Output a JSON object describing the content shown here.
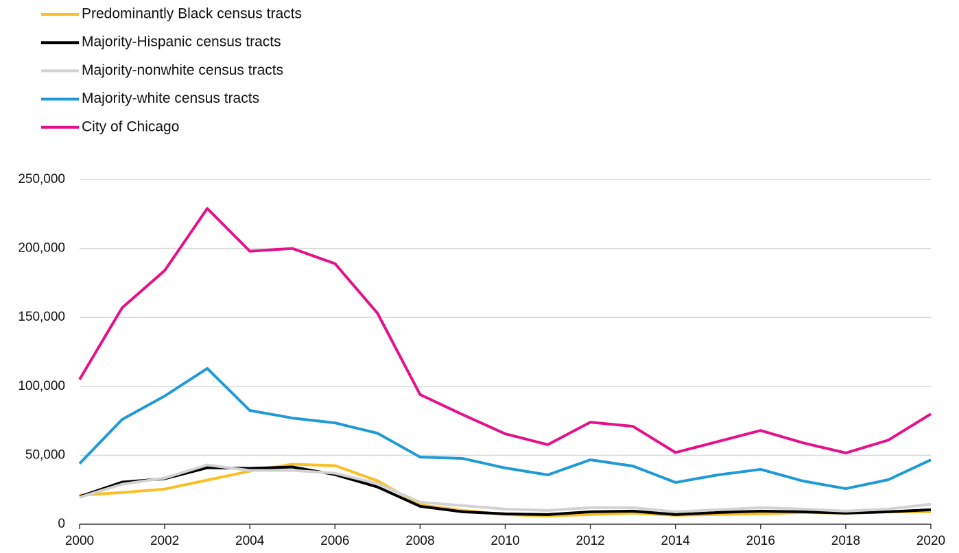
{
  "chart_data": {
    "type": "line",
    "x": [
      2000,
      2001,
      2002,
      2003,
      2004,
      2005,
      2006,
      2007,
      2008,
      2009,
      2010,
      2011,
      2012,
      2013,
      2014,
      2015,
      2016,
      2017,
      2018,
      2019,
      2020
    ],
    "series": [
      {
        "name": "Predominantly Black census tracts",
        "color": "#fbbf24",
        "values": [
          21000,
          23000,
          25500,
          32000,
          38500,
          43500,
          42500,
          31500,
          14000,
          10000,
          7000,
          6000,
          7000,
          8000,
          6500,
          7000,
          7500,
          8500,
          8000,
          9000,
          9000
        ]
      },
      {
        "name": "Majority-Hispanic census tracts",
        "color": "#000000",
        "values": [
          20000,
          30500,
          33000,
          41000,
          40500,
          41500,
          36000,
          27000,
          13000,
          9000,
          7500,
          7000,
          9000,
          9500,
          7000,
          8500,
          9500,
          9000,
          8000,
          9000,
          10500
        ]
      },
      {
        "name": "Majority-nonwhite census tracts",
        "color": "#d2d2d2",
        "values": [
          19500,
          29000,
          33500,
          43000,
          39000,
          39000,
          37000,
          29500,
          16000,
          13500,
          11000,
          10000,
          12000,
          12000,
          9000,
          10500,
          12000,
          11000,
          9500,
          11000,
          14500
        ]
      },
      {
        "name": "Majority-white census tracts",
        "color": "#1f9ad6",
        "values": [
          44000,
          76000,
          93000,
          113000,
          82500,
          77000,
          73500,
          66000,
          48700,
          47700,
          40800,
          35800,
          46700,
          42200,
          30300,
          35800,
          39800,
          31300,
          25800,
          32300,
          46700
        ]
      },
      {
        "name": "City of Chicago",
        "color": "#e5108a",
        "values": [
          105000,
          157000,
          184000,
          229000,
          198000,
          200000,
          189000,
          153000,
          94000,
          79500,
          65600,
          57700,
          74000,
          71000,
          52000,
          60000,
          68000,
          59000,
          51700,
          61000,
          80000
        ]
      }
    ],
    "xlim": [
      2000,
      2020
    ],
    "xticks": [
      2000,
      2002,
      2004,
      2006,
      2008,
      2010,
      2012,
      2014,
      2016,
      2018,
      2020
    ],
    "ylim": [
      0,
      250000
    ],
    "yticks": [
      0,
      {
        "value": 50000,
        "label": "50,000"
      },
      {
        "value": 100000,
        "label": "100,000"
      },
      {
        "value": 150000,
        "label": "150,000"
      },
      {
        "value": 200000,
        "label": "200,000"
      },
      {
        "value": 250000,
        "label": "250,000"
      }
    ],
    "grid": true,
    "legend": "top-left"
  }
}
